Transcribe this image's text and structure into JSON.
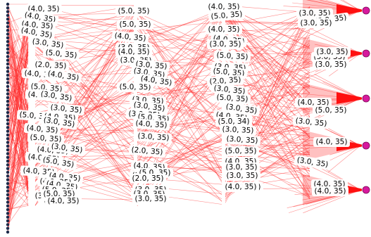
{
  "diagram": {
    "type": "layered-flow-graph",
    "edge_color": "#ff2a2a",
    "source_node_color": "#1b2a4a",
    "sink_node_color": "#d61a9e",
    "label_color": "#000000",
    "source_node_count": 62,
    "sink_node_count": 5,
    "edge_labels": {
      "col1": [
        "(4.0, 35)",
        "(4.0, 35)",
        "(4.0, 35)",
        "(4.0, 35)",
        "(3.0, 35)",
        "(5.0, 35)",
        "(2.0, 35)",
        "(4.0, 35)",
        "(4.0, 35)",
        "(5.0, 35)",
        "(4.0, 35)",
        "(3.0, 35)",
        "(3.0, 35)",
        "(5.0, 35)",
        "(4.0, 35)",
        "(4.0, 35)",
        "(3.0, 35)",
        "(5.0, 35)",
        "(4.0, 35)",
        "(3.0, 35)",
        "(4.0, 35)",
        "(5.0, 35)",
        "(4.0, 35)",
        "(4.0, 35)",
        "(4.0, 35)",
        "(3.0, 35)",
        "(4.0, 35)",
        "(5.0, 35)",
        "(4.0, 35)",
        "(3.0, 35)",
        "(5.0, 35)",
        "(4.0, 35)"
      ],
      "col2": [
        "(5.0, 35)",
        "(5.0, 35)",
        "(4.0, 35)",
        "(3.0, 35)",
        "(4.0, 35)",
        "(3.0, 35)",
        "(3.0, 35)",
        "(3.0, 35)",
        "(5.0, 35)",
        "(4.0, 35)",
        "(3.0, 35)",
        "(3.0, 35)",
        "(3.0, 35)",
        "(5.0, 35)",
        "(4.0, 35)",
        "(3.0, 35)",
        "(2.0, 35)",
        "(4.0, 35)",
        "(3.0, 35)",
        "(5.0, 35)",
        "(3.0, 35)",
        "(3.0, 35)",
        "(2.0, 35)",
        "(3.0, 35)",
        "(3.0, 35)"
      ],
      "col3": [
        "(4.0, 35)",
        "(5.0, 35)",
        "(4.0, 35)",
        "(4.0, 35)",
        "(3.0, 35)",
        "(5.0, 35)",
        "(3.0, 35)",
        "(5.0, 35)",
        "(2.0, 35)",
        "(3.0, 35)",
        "(5.0, 35)",
        "(3.0, 35)",
        "(4.0, 35)",
        "(5.0, 34)",
        "(3.0, 35)",
        "(3.0, 35)",
        "(5.0, 35)",
        "(4.0, 35)",
        "(3.0, 35)",
        "(3.0, 35)",
        "(3.0, 35)",
        "(4.0, 35)"
      ],
      "col4": [
        "(3.0, 35)",
        "(3.0, 35)",
        "(3.0, 35)",
        "(5.0, 35)",
        "(3.0, 35)",
        "(3.0, 35)",
        "(4.0, 35)",
        "(5.0, 35)",
        "(3.0, 35)",
        "(4.0, 35)",
        "(3.0, 35)",
        "(4.0, 35)",
        "(4.0, 35)"
      ]
    }
  }
}
